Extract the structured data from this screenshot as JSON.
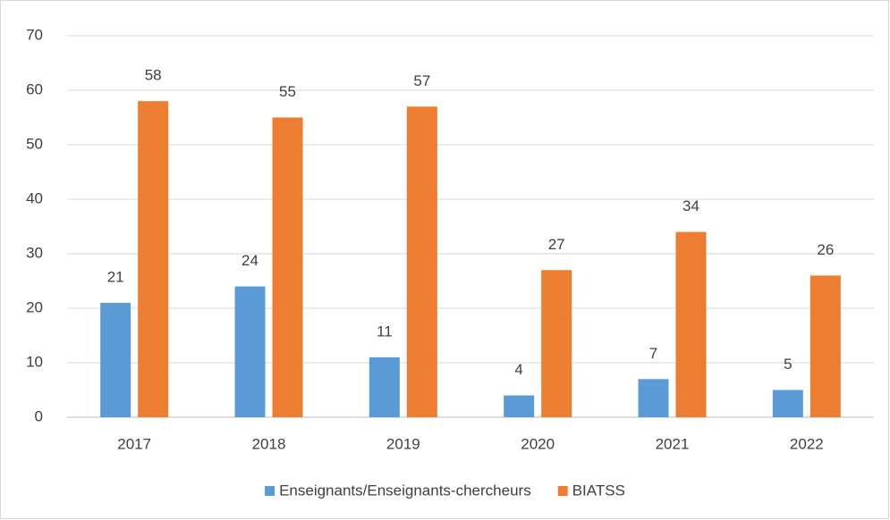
{
  "chart_data": {
    "type": "bar",
    "categories": [
      "2017",
      "2018",
      "2019",
      "2020",
      "2021",
      "2022"
    ],
    "series": [
      {
        "name": "Enseignants/Enseignants-chercheurs",
        "color": "#5b9bd5",
        "values": [
          21,
          24,
          11,
          4,
          7,
          5
        ]
      },
      {
        "name": "BIATSS",
        "color": "#ed7d31",
        "values": [
          58,
          55,
          57,
          27,
          34,
          26
        ]
      }
    ],
    "ylim": [
      0,
      70
    ],
    "yticks": [
      0,
      10,
      20,
      30,
      40,
      50,
      60,
      70
    ],
    "grid": true,
    "legend": "bottom"
  }
}
